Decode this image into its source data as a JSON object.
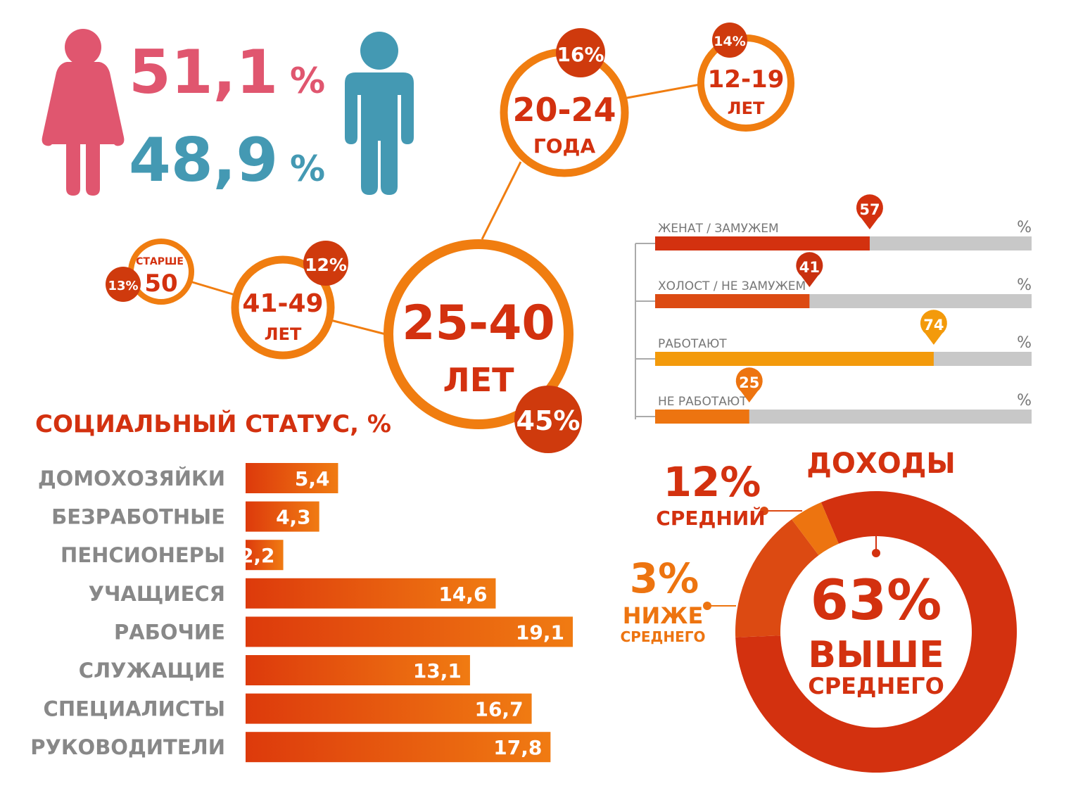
{
  "gender": {
    "female_value": "51,1",
    "female_unit": "%",
    "male_value": "48,9",
    "male_unit": "%",
    "female_color": "#e0566f",
    "male_color": "#4499b3"
  },
  "age_groups": [
    {
      "id": "g12_19",
      "label_top": "12-19",
      "label_bottom": "ЛЕТ",
      "badge": "14%"
    },
    {
      "id": "g20_24",
      "label_top": "20-24",
      "label_bottom": "ГОДА",
      "badge": "16%"
    },
    {
      "id": "g25_40",
      "label_top": "25-40",
      "label_bottom": "ЛЕТ",
      "badge": "45%"
    },
    {
      "id": "g41_49",
      "label_top": "41-49",
      "label_bottom": "ЛЕТ",
      "badge": "12%"
    },
    {
      "id": "g50",
      "label_top": "СТАРШЕ",
      "label_bottom": "50",
      "badge": "13%"
    }
  ],
  "status_bars": {
    "unit": "%",
    "items": [
      {
        "label": "ЖЕНАТ / ЗАМУЖЕМ",
        "value": 57,
        "color": "#d3310f",
        "pin": "#d3310f"
      },
      {
        "label": "ХОЛОСТ / НЕ ЗАМУЖЕМ",
        "value": 41,
        "color": "#dc4a12",
        "pin": "#c9300f"
      },
      {
        "label": "РАБОТАЮТ",
        "value": 74,
        "color": "#f39a0b",
        "pin": "#f39a0b"
      },
      {
        "label": "НЕ РАБОТАЮТ",
        "value": 25,
        "color": "#ed7410",
        "pin": "#ed7410"
      }
    ]
  },
  "chart_data": [
    {
      "type": "bar",
      "orientation": "horizontal",
      "title": "СОЦИАЛЬНЫЙ СТАТУС, %",
      "categories": [
        "ДОМОХОЗЯЙКИ",
        "БЕЗРАБОТНЫЕ",
        "ПЕНСИОНЕРЫ",
        "УЧАЩИЕСЯ",
        "РАБОЧИЕ",
        "СЛУЖАЩИЕ",
        "СПЕЦИАЛИСТЫ",
        "РУКОВОДИТЕЛИ"
      ],
      "values": [
        5.4,
        4.3,
        2.2,
        14.6,
        19.1,
        13.1,
        16.7,
        17.8
      ],
      "value_labels": [
        "5,4",
        "4,3",
        "2,2",
        "14,6",
        "19,1",
        "13,1",
        "16,7",
        "17,8"
      ],
      "bar_color_start": "#dd3a0c",
      "bar_color_end": "#f07b12"
    },
    {
      "type": "pie",
      "title": "ДОХОДЫ",
      "slices": [
        {
          "label": "ВЫШЕ СРЕДНЕГО",
          "value": 63,
          "text": "63%",
          "color": "#d3310f"
        },
        {
          "label": "СРЕДНИЙ",
          "value": 12,
          "text": "12%",
          "color": "#dc4a12"
        },
        {
          "label": "НИЖЕ СРЕДНЕГО",
          "value": 3,
          "text": "3%",
          "color": "#ed7410"
        }
      ],
      "label_main_1": "ВЫШЕ",
      "label_main_2": "СРЕДНЕГО",
      "label_mid": "СРЕДНИЙ",
      "label_low_1": "НИЖЕ",
      "label_low_2": "СРЕДНЕГО"
    }
  ],
  "colors": {
    "orange": "#f07d10",
    "red_orange": "#d3310f",
    "badge": "#cf3a0d",
    "gray_track": "#c8c8c8",
    "label_gray": "#888888"
  }
}
